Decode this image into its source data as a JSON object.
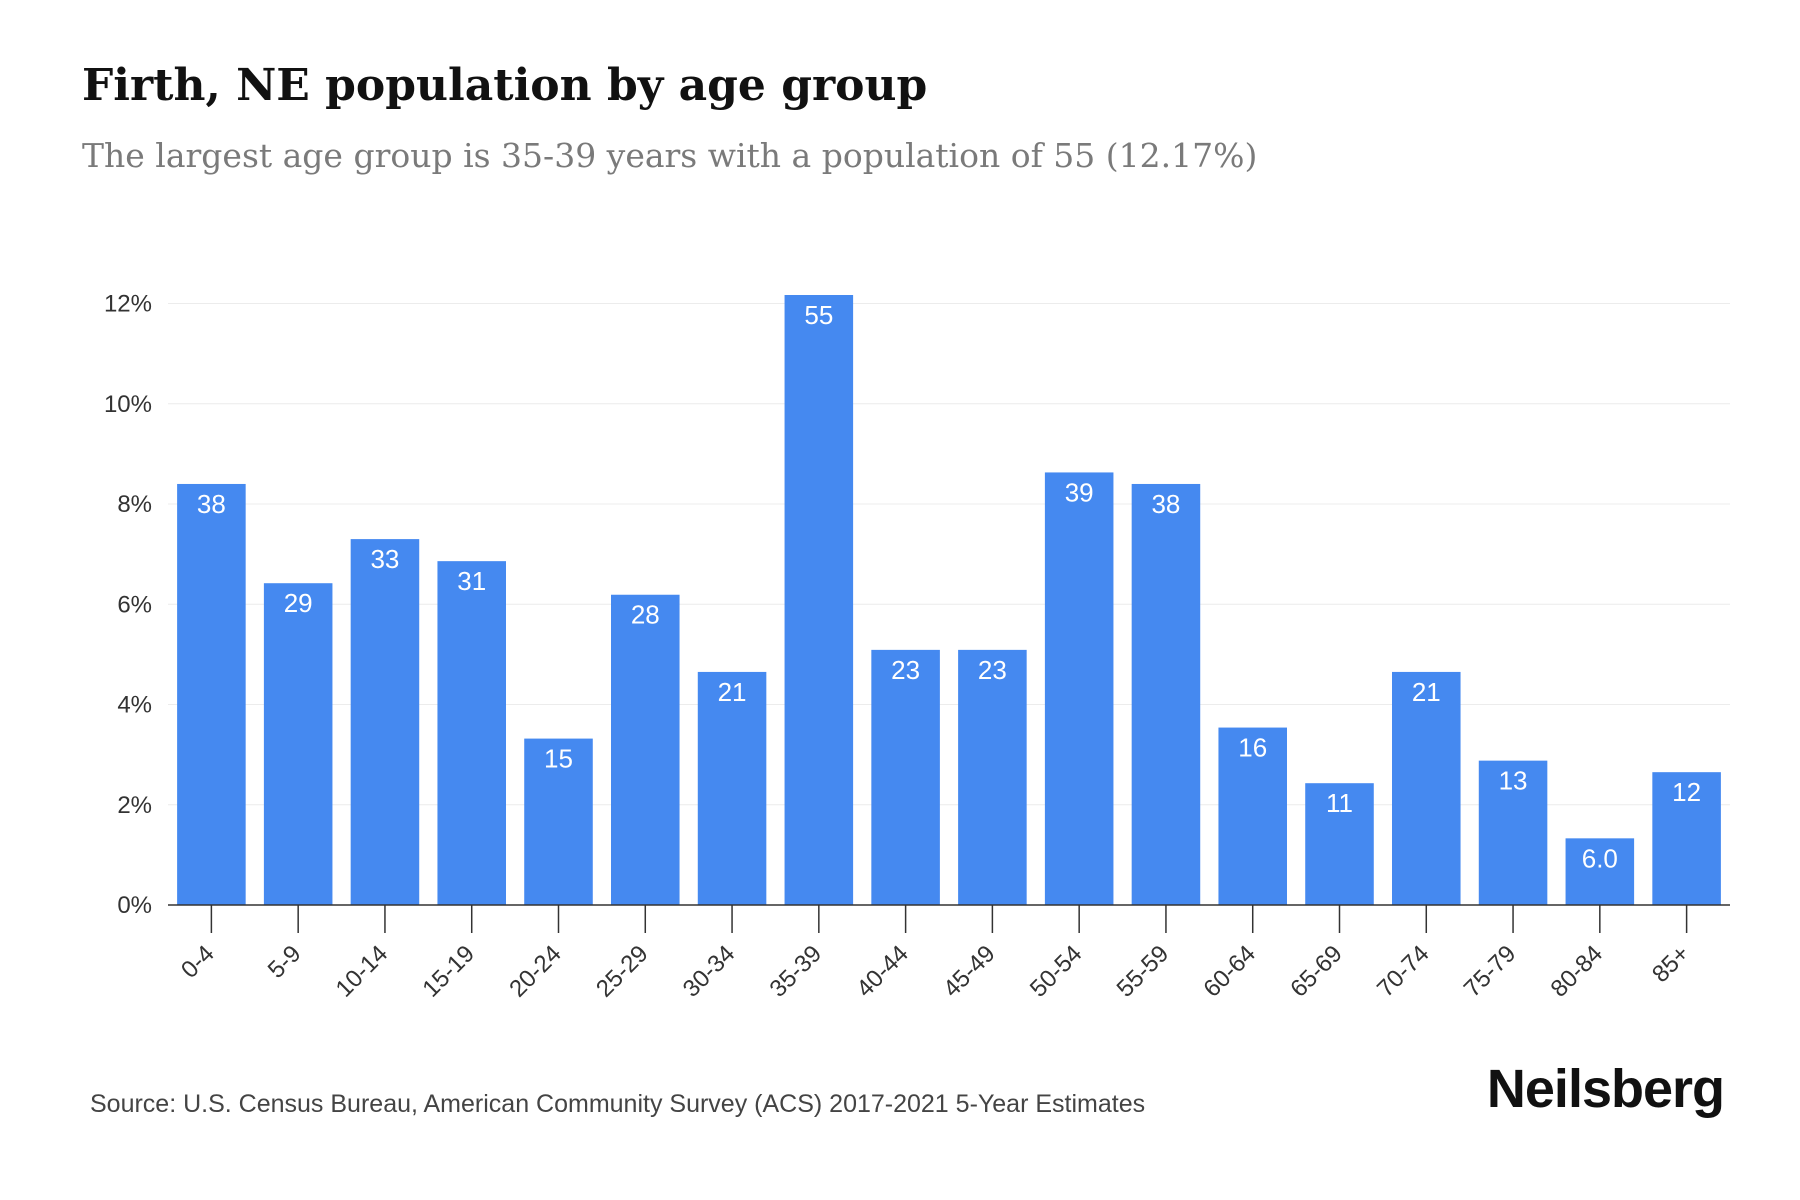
{
  "title": "Firth, NE population by age group",
  "subtitle": "The largest age group is 35-39 years with a population of 55 (12.17%)",
  "source": "Source: U.S. Census Bureau, American Community Survey (ACS) 2017-2021 5-Year Estimates",
  "brand": "Neilsberg",
  "colors": {
    "bar": "#4589f0",
    "grid": "#ececec",
    "axis": "#333333"
  },
  "chart_data": {
    "type": "bar",
    "title": "Firth, NE population by age group",
    "subtitle": "The largest age group is 35-39 years with a population of 55 (12.17%)",
    "xlabel": "",
    "ylabel": "",
    "ylim": [
      0,
      12
    ],
    "yticks": [
      0,
      2,
      4,
      6,
      8,
      10,
      12
    ],
    "ytick_labels": [
      "0%",
      "2%",
      "4%",
      "6%",
      "8%",
      "10%",
      "12%"
    ],
    "grid": true,
    "legend": "none",
    "categories": [
      "0-4",
      "5-9",
      "10-14",
      "15-19",
      "20-24",
      "25-29",
      "30-34",
      "35-39",
      "40-44",
      "45-49",
      "50-54",
      "55-59",
      "60-64",
      "65-69",
      "70-74",
      "75-79",
      "80-84",
      "85+"
    ],
    "percent_values": [
      8.4,
      6.42,
      7.3,
      6.86,
      3.32,
      6.19,
      4.65,
      12.17,
      5.09,
      5.09,
      8.63,
      8.4,
      3.54,
      2.43,
      4.65,
      2.88,
      1.33,
      2.65
    ],
    "data_labels": [
      "38",
      "29",
      "33",
      "31",
      "15",
      "28",
      "21",
      "55",
      "23",
      "23",
      "39",
      "38",
      "16",
      "11",
      "21",
      "13",
      "6.0",
      "12"
    ]
  }
}
